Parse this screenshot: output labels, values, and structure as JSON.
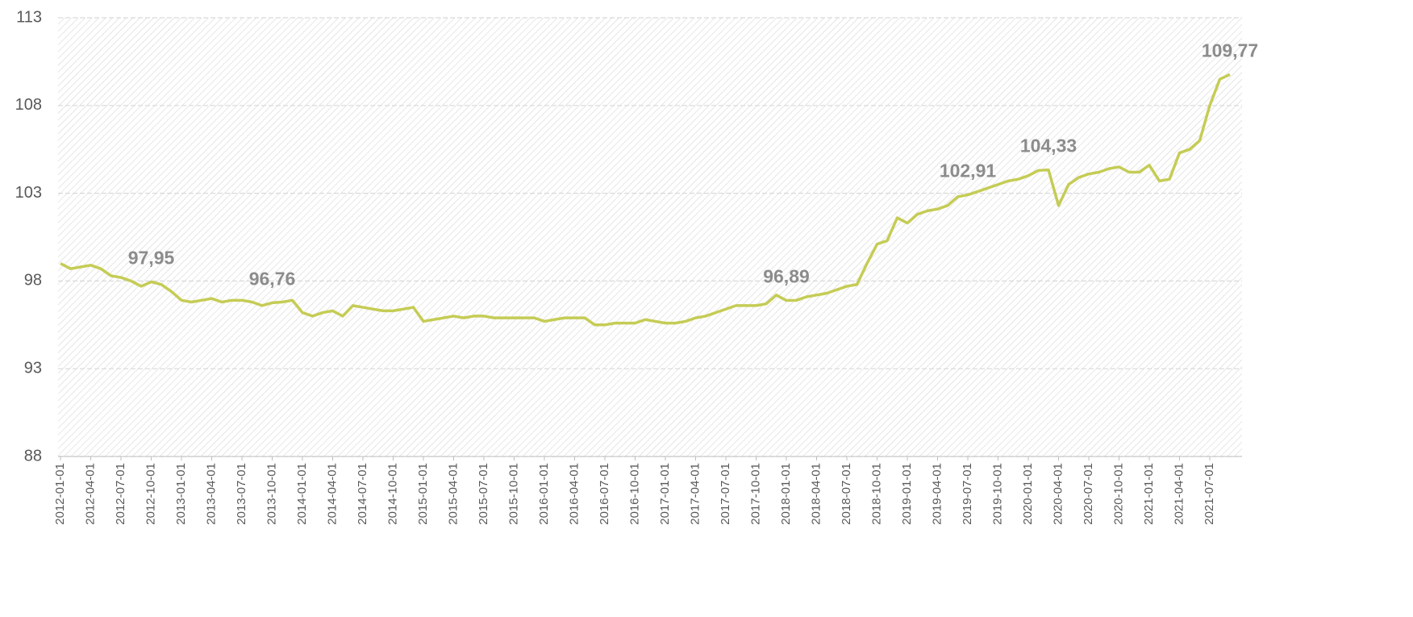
{
  "chart_data": {
    "type": "line",
    "categories": [
      "2012-01-01",
      null,
      null,
      "2012-04-01",
      null,
      null,
      "2012-07-01",
      null,
      null,
      "2012-10-01",
      null,
      null,
      "2013-01-01",
      null,
      null,
      "2013-04-01",
      null,
      null,
      "2013-07-01",
      null,
      null,
      "2013-10-01",
      null,
      null,
      "2014-01-01",
      null,
      null,
      "2014-04-01",
      null,
      null,
      "2014-07-01",
      null,
      null,
      "2014-10-01",
      null,
      null,
      "2015-01-01",
      null,
      null,
      "2015-04-01",
      null,
      null,
      "2015-07-01",
      null,
      null,
      "2015-10-01",
      null,
      null,
      "2016-01-01",
      null,
      null,
      "2016-04-01",
      null,
      null,
      "2016-07-01",
      null,
      null,
      "2016-10-01",
      null,
      null,
      "2017-01-01",
      null,
      null,
      "2017-04-01",
      null,
      null,
      "2017-07-01",
      null,
      null,
      "2017-10-01",
      null,
      null,
      "2018-01-01",
      null,
      null,
      "2018-04-01",
      null,
      null,
      "2018-07-01",
      null,
      null,
      "2018-10-01",
      null,
      null,
      "2019-01-01",
      null,
      null,
      "2019-04-01",
      null,
      null,
      "2019-07-01",
      null,
      null,
      "2019-10-01",
      null,
      null,
      "2020-01-01",
      null,
      null,
      "2020-04-01",
      null,
      null,
      "2020-07-01",
      null,
      null,
      "2020-10-01",
      null,
      null,
      "2021-01-01",
      null,
      null,
      "2021-04-01",
      null,
      null,
      "2021-07-01",
      null,
      null
    ],
    "series": [
      {
        "color": "#c5cc55",
        "values": [
          99.0,
          98.7,
          98.8,
          98.9,
          98.7,
          98.3,
          98.2,
          98.0,
          97.7,
          97.95,
          97.8,
          97.4,
          96.9,
          96.8,
          96.9,
          97.0,
          96.8,
          96.9,
          96.9,
          96.8,
          96.6,
          96.76,
          96.8,
          96.9,
          96.2,
          96.0,
          96.2,
          96.3,
          96.0,
          96.6,
          96.5,
          96.4,
          96.3,
          96.3,
          96.4,
          96.5,
          95.7,
          95.8,
          95.9,
          96.0,
          95.9,
          96.0,
          96.0,
          95.9,
          95.9,
          95.9,
          95.9,
          95.9,
          95.7,
          95.8,
          95.9,
          95.9,
          95.9,
          95.5,
          95.5,
          95.6,
          95.6,
          95.6,
          95.8,
          95.7,
          95.6,
          95.6,
          95.7,
          95.9,
          96.0,
          96.2,
          96.4,
          96.6,
          96.6,
          96.6,
          96.7,
          97.2,
          96.89,
          96.9,
          97.1,
          97.2,
          97.3,
          97.5,
          97.7,
          97.8,
          99.0,
          100.1,
          100.3,
          101.6,
          101.3,
          101.8,
          102.0,
          102.1,
          102.3,
          102.8,
          102.91,
          103.1,
          103.3,
          103.5,
          103.7,
          103.8,
          104.0,
          104.3,
          104.33,
          102.3,
          103.5,
          103.9,
          104.1,
          104.2,
          104.4,
          104.5,
          104.2,
          104.2,
          104.6,
          103.7,
          103.8,
          105.3,
          105.5,
          106.0,
          108.0,
          109.5,
          109.77
        ],
        "value_labels": [
          null,
          null,
          null,
          null,
          null,
          null,
          null,
          null,
          null,
          "97,95",
          null,
          null,
          null,
          null,
          null,
          null,
          null,
          null,
          null,
          null,
          null,
          "96,76",
          null,
          null,
          null,
          null,
          null,
          null,
          null,
          null,
          null,
          null,
          null,
          null,
          null,
          null,
          null,
          null,
          null,
          null,
          null,
          null,
          null,
          null,
          null,
          null,
          null,
          null,
          null,
          null,
          null,
          null,
          null,
          null,
          null,
          null,
          null,
          null,
          null,
          null,
          null,
          null,
          null,
          null,
          null,
          null,
          null,
          null,
          null,
          null,
          null,
          null,
          "96,89",
          null,
          null,
          null,
          null,
          null,
          null,
          null,
          null,
          null,
          null,
          null,
          null,
          null,
          null,
          null,
          null,
          null,
          "102,91",
          null,
          null,
          null,
          null,
          null,
          null,
          null,
          "104,33",
          null,
          null,
          null,
          null,
          null,
          null,
          null,
          null,
          null,
          null,
          null,
          null,
          null,
          null,
          null,
          null,
          null,
          "109,77"
        ]
      }
    ],
    "ylim": [
      88,
      113
    ],
    "yticks": [
      88,
      93,
      98,
      103,
      108,
      113
    ],
    "grid": true
  }
}
